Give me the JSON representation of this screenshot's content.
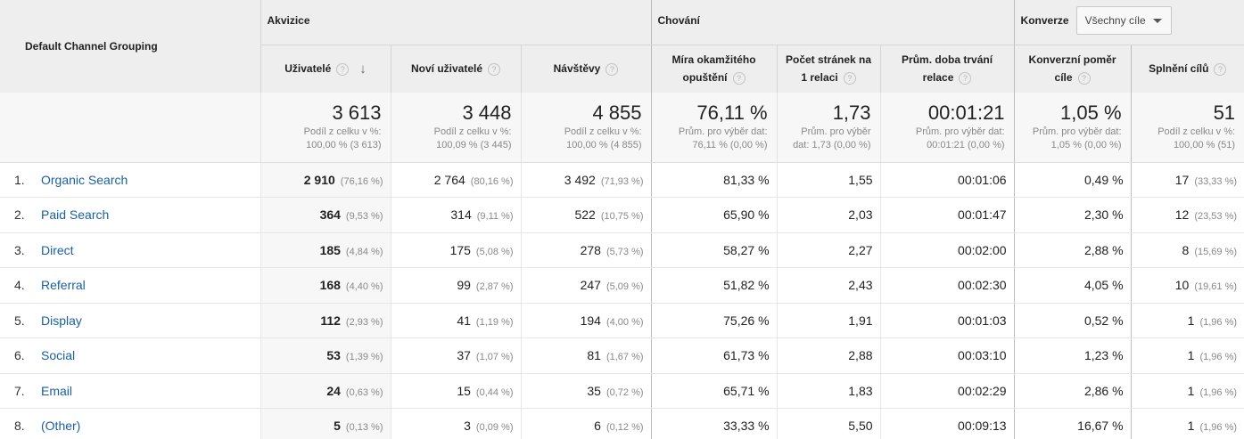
{
  "table": {
    "dimension_header": "Default Channel Grouping",
    "groups": {
      "acquisition": "Akvizice",
      "behavior": "Chování",
      "conversions": "Konverze",
      "goal_select": "Všechny cíle"
    },
    "columns": [
      "Uživatelé",
      "Noví uživatelé",
      "Návštěvy",
      "Míra okamžitého opuštění",
      "Počet stránek na 1 relaci",
      "Prům. doba trvání relace",
      "Konverzní poměr cíle",
      "Splnění cílů"
    ],
    "totals": [
      {
        "value": "3 613",
        "sub1": "Podíl z celku v %:",
        "sub2": "100,00 % (3 613)"
      },
      {
        "value": "3 448",
        "sub1": "Podíl z celku v %:",
        "sub2": "100,09 % (3 445)"
      },
      {
        "value": "4 855",
        "sub1": "Podíl z celku v %:",
        "sub2": "100,00 % (4 855)"
      },
      {
        "value": "76,11 %",
        "sub1": "Prům. pro výběr dat:",
        "sub2": "76,11 % (0,00 %)"
      },
      {
        "value": "1,73",
        "sub1": "Prům. pro výběr",
        "sub2": "dat: 1,73 (0,00 %)"
      },
      {
        "value": "00:01:21",
        "sub1": "Prům. pro výběr dat:",
        "sub2": "00:01:21 (0,00 %)"
      },
      {
        "value": "1,05 %",
        "sub1": "Prům. pro výběr dat:",
        "sub2": "1,05 % (0,00 %)"
      },
      {
        "value": "51",
        "sub1": "Podíl z celku v %:",
        "sub2": "100,00 % (51)"
      }
    ],
    "rows": [
      {
        "idx": "1.",
        "channel": "Organic Search",
        "users": "2 910",
        "users_pct": "(76,16 %)",
        "new_users": "2 764",
        "new_users_pct": "(80,16 %)",
        "sessions": "3 492",
        "sessions_pct": "(71,93 %)",
        "bounce": "81,33 %",
        "pages": "1,55",
        "duration": "00:01:06",
        "conv_rate": "0,49 %",
        "goals": "17",
        "goals_pct": "(33,33 %)"
      },
      {
        "idx": "2.",
        "channel": "Paid Search",
        "users": "364",
        "users_pct": "(9,53 %)",
        "new_users": "314",
        "new_users_pct": "(9,11 %)",
        "sessions": "522",
        "sessions_pct": "(10,75 %)",
        "bounce": "65,90 %",
        "pages": "2,03",
        "duration": "00:01:47",
        "conv_rate": "2,30 %",
        "goals": "12",
        "goals_pct": "(23,53 %)"
      },
      {
        "idx": "3.",
        "channel": "Direct",
        "users": "185",
        "users_pct": "(4,84 %)",
        "new_users": "175",
        "new_users_pct": "(5,08 %)",
        "sessions": "278",
        "sessions_pct": "(5,73 %)",
        "bounce": "58,27 %",
        "pages": "2,27",
        "duration": "00:02:00",
        "conv_rate": "2,88 %",
        "goals": "8",
        "goals_pct": "(15,69 %)"
      },
      {
        "idx": "4.",
        "channel": "Referral",
        "users": "168",
        "users_pct": "(4,40 %)",
        "new_users": "99",
        "new_users_pct": "(2,87 %)",
        "sessions": "247",
        "sessions_pct": "(5,09 %)",
        "bounce": "51,82 %",
        "pages": "2,43",
        "duration": "00:02:30",
        "conv_rate": "4,05 %",
        "goals": "10",
        "goals_pct": "(19,61 %)"
      },
      {
        "idx": "5.",
        "channel": "Display",
        "users": "112",
        "users_pct": "(2,93 %)",
        "new_users": "41",
        "new_users_pct": "(1,19 %)",
        "sessions": "194",
        "sessions_pct": "(4,00 %)",
        "bounce": "75,26 %",
        "pages": "1,91",
        "duration": "00:01:03",
        "conv_rate": "0,52 %",
        "goals": "1",
        "goals_pct": "(1,96 %)"
      },
      {
        "idx": "6.",
        "channel": "Social",
        "users": "53",
        "users_pct": "(1,39 %)",
        "new_users": "37",
        "new_users_pct": "(1,07 %)",
        "sessions": "81",
        "sessions_pct": "(1,67 %)",
        "bounce": "61,73 %",
        "pages": "2,88",
        "duration": "00:03:10",
        "conv_rate": "1,23 %",
        "goals": "1",
        "goals_pct": "(1,96 %)"
      },
      {
        "idx": "7.",
        "channel": "Email",
        "users": "24",
        "users_pct": "(0,63 %)",
        "new_users": "15",
        "new_users_pct": "(0,44 %)",
        "sessions": "35",
        "sessions_pct": "(0,72 %)",
        "bounce": "65,71 %",
        "pages": "1,83",
        "duration": "00:02:29",
        "conv_rate": "2,86 %",
        "goals": "1",
        "goals_pct": "(1,96 %)"
      },
      {
        "idx": "8.",
        "channel": "(Other)",
        "users": "5",
        "users_pct": "(0,13 %)",
        "new_users": "3",
        "new_users_pct": "(0,09 %)",
        "sessions": "6",
        "sessions_pct": "(0,12 %)",
        "bounce": "33,33 %",
        "pages": "5,50",
        "duration": "00:09:13",
        "conv_rate": "16,67 %",
        "goals": "1",
        "goals_pct": "(1,96 %)"
      }
    ]
  }
}
